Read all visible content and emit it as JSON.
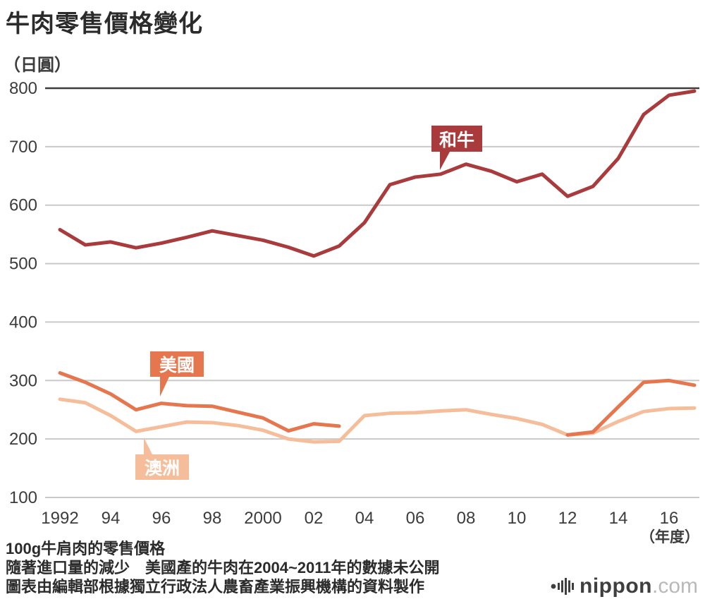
{
  "header": {
    "title": "牛肉零售價格變化",
    "unit_label": "（日圓）"
  },
  "chart_data": {
    "type": "line",
    "x_years": [
      1992,
      1993,
      1994,
      1995,
      1996,
      1997,
      1998,
      1999,
      2000,
      2001,
      2002,
      2003,
      2004,
      2005,
      2006,
      2007,
      2008,
      2009,
      2010,
      2011,
      2012,
      2013,
      2014,
      2015,
      2016,
      2017
    ],
    "x_tick_labels": [
      "1992",
      "94",
      "96",
      "98",
      "2000",
      "02",
      "04",
      "06",
      "08",
      "10",
      "12",
      "14",
      "16"
    ],
    "x_axis_note": "（年度）",
    "ylim": [
      100,
      800
    ],
    "y_ticks": [
      100,
      200,
      300,
      400,
      500,
      600,
      700,
      800
    ],
    "grid": true,
    "legend_position": "inline-callouts",
    "series": [
      {
        "name": "和牛",
        "color": "#aa3b3d",
        "values": [
          558,
          532,
          537,
          527,
          535,
          545,
          556,
          548,
          540,
          528,
          513,
          530,
          570,
          635,
          648,
          653,
          670,
          658,
          640,
          653,
          615,
          632,
          680,
          755,
          788,
          795
        ]
      },
      {
        "name": "美國",
        "color": "#e5764e",
        "values": [
          313,
          297,
          277,
          250,
          261,
          257,
          256,
          246,
          236,
          214,
          226,
          222,
          null,
          null,
          null,
          null,
          null,
          null,
          null,
          null,
          207,
          212,
          255,
          297,
          300,
          292
        ]
      },
      {
        "name": "澳洲",
        "color": "#f6bd9a",
        "values": [
          268,
          262,
          240,
          213,
          221,
          229,
          228,
          223,
          215,
          200,
          195,
          196,
          240,
          244,
          245,
          248,
          250,
          242,
          235,
          225,
          207,
          210,
          230,
          247,
          252,
          253
        ]
      }
    ],
    "annotations": [
      {
        "label": "和牛",
        "color": "#aa3b3d",
        "text_color": "#ffffff"
      },
      {
        "label": "美國",
        "color": "#e5764e",
        "text_color": "#ffffff"
      },
      {
        "label": "澳洲",
        "color": "#f6bd9a",
        "text_color": "#ffffff"
      }
    ]
  },
  "footer": {
    "note1": "100g牛肩肉的零售價格",
    "note2": "隨著進口量的減少　美國產的牛肉在2004~2011年的數據未公開",
    "note3": "圖表由編輯部根據獨立行政法人農畜產業振興機構的資料製作"
  },
  "branding": {
    "name": "nippon",
    "suffix": ".com"
  }
}
